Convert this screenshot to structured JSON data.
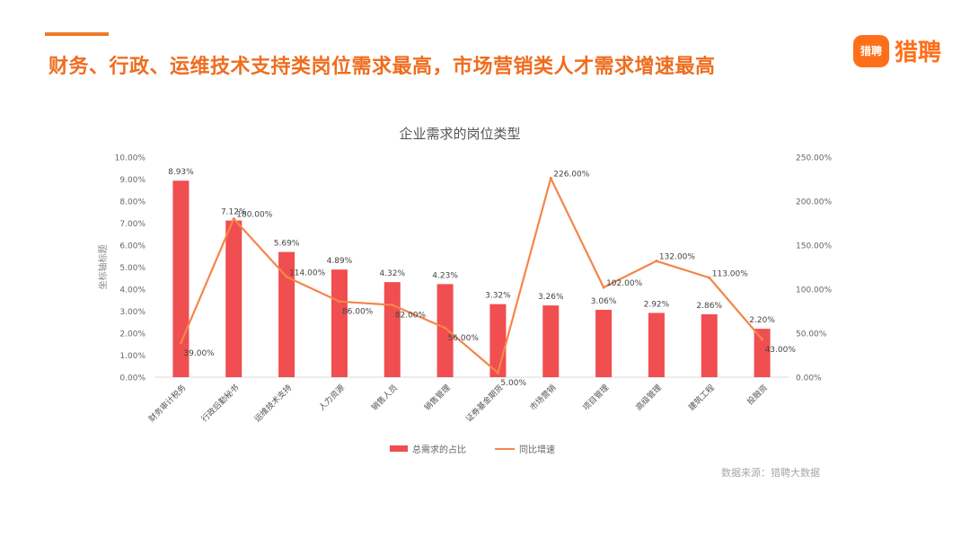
{
  "header": {
    "headline": "财务、行政、运维技术支持类岗位需求最高，市场营销类人才需求增速最高",
    "brand_icon_text": "猎聘",
    "brand_name": "猎聘"
  },
  "source_note": "数据来源：猎聘大数据",
  "colors": {
    "bar": "#f04e50",
    "line": "#f5854a",
    "accent": "#ef6d1f"
  },
  "chart_data": {
    "type": "bar",
    "title": "企业需求的岗位类型",
    "ylabel": "坐标轴标题",
    "categories": [
      "财务审计税务",
      "行政后勤秘书",
      "运维技术支持",
      "人力资源",
      "销售人员",
      "销售管理",
      "证券基金期货",
      "市场营销",
      "项目管理",
      "高级管理",
      "建筑工程",
      "投融资"
    ],
    "series": [
      {
        "name": "总需求的占比",
        "type": "bar",
        "axis": "left",
        "values": [
          8.93,
          7.12,
          5.69,
          4.89,
          4.32,
          4.23,
          3.32,
          3.26,
          3.06,
          2.92,
          2.86,
          2.2
        ],
        "labels": [
          "8.93%",
          "7.12%",
          "5.69%",
          "4.89%",
          "4.32%",
          "4.23%",
          "3.32%",
          "3.26%",
          "3.06%",
          "2.92%",
          "2.86%",
          "2.20%"
        ]
      },
      {
        "name": "同比增速",
        "type": "line",
        "axis": "right",
        "values": [
          39,
          180,
          114,
          86,
          82,
          56,
          5,
          226,
          102,
          132,
          113,
          43
        ],
        "labels": [
          "39.00%",
          "180.00%",
          "114.00%",
          "86.00%",
          "82.00%",
          "56.00%",
          "5.00%",
          "226.00%",
          "102.00%",
          "132.00%",
          "113.00%",
          "43.00%"
        ]
      }
    ],
    "ylim_left": [
      0,
      10
    ],
    "ylim_right": [
      0,
      250
    ],
    "left_ticks": [
      "0.00%",
      "1.00%",
      "2.00%",
      "3.00%",
      "4.00%",
      "5.00%",
      "6.00%",
      "7.00%",
      "8.00%",
      "9.00%",
      "10.00%"
    ],
    "right_ticks": [
      "0.00%",
      "50.00%",
      "100.00%",
      "150.00%",
      "200.00%",
      "250.00%"
    ],
    "grid": false,
    "legend": "bottom"
  }
}
